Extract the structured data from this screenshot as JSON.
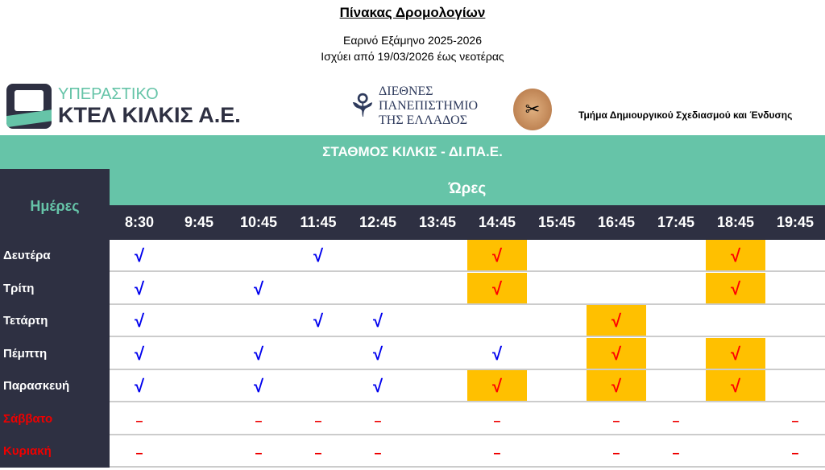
{
  "title": "Πίνακας Δρομολογίων",
  "subtitle1": "Εαρινό Εξάμηνο 2025-2026",
  "subtitle2": "Ισχύει από 19/03/2026 έως νεοτέρας",
  "logos": {
    "ktel_top": "ΥΠΕΡΑΣΤΙΚΟ",
    "ktel_bottom": "ΚΤΕΛ ΚΙΛΚΙΣ Α.Ε.",
    "ihu": [
      "ΔΙΕΘΝΕΣ",
      "ΠΑΝΕΠΙΣΤΗΜΙΟ",
      "ΤΗΣ ΕΛΛΑΔΟΣ"
    ],
    "department": "Τμήμα Δημιουργικού Σχεδιασμού και Ένδυσης"
  },
  "route": "ΣΤΑΘΜΟΣ ΚΙΛΚΙΣ - ΔΙ.ΠΑ.Ε.",
  "days_header": "Ημέρες",
  "hours_header": "Ώρες",
  "times": [
    "8:30",
    "9:45",
    "10:45",
    "11:45",
    "12:45",
    "13:45",
    "14:45",
    "15:45",
    "16:45",
    "17:45",
    "18:45",
    "19:45"
  ],
  "symbols": {
    "check": "√",
    "dash": "–"
  },
  "colors": {
    "dark": "#2e3042",
    "green": "#66c4a8",
    "highlight": "#ffc000",
    "check": "#0000ee",
    "highlight_check": "#ff0000",
    "weekend": "#ee0000"
  },
  "rows": [
    {
      "day": "Δευτέρα",
      "weekend": false,
      "cells": [
        "check",
        "",
        "",
        "check",
        "",
        "",
        "hl",
        "",
        "",
        "",
        "hl",
        ""
      ]
    },
    {
      "day": "Τρίτη",
      "weekend": false,
      "cells": [
        "check",
        "",
        "check",
        "",
        "",
        "",
        "hl",
        "",
        "",
        "",
        "hl",
        ""
      ]
    },
    {
      "day": "Τετάρτη",
      "weekend": false,
      "cells": [
        "check",
        "",
        "",
        "check",
        "check",
        "",
        "",
        "",
        "hl",
        "",
        "",
        ""
      ]
    },
    {
      "day": "Πέμπτη",
      "weekend": false,
      "cells": [
        "check",
        "",
        "check",
        "",
        "check",
        "",
        "check",
        "",
        "hl",
        "",
        "hl",
        ""
      ]
    },
    {
      "day": "Παρασκευή",
      "weekend": false,
      "cells": [
        "check",
        "",
        "check",
        "",
        "check",
        "",
        "hl",
        "",
        "hl",
        "",
        "hl",
        ""
      ]
    },
    {
      "day": "Σάββατο",
      "weekend": true,
      "cells": [
        "dash",
        "",
        "dash",
        "dash",
        "dash",
        "",
        "dash",
        "",
        "dash",
        "dash",
        "",
        "dash"
      ]
    },
    {
      "day": "Κυριακή",
      "weekend": true,
      "cells": [
        "dash",
        "",
        "dash",
        "dash",
        "dash",
        "",
        "dash",
        "",
        "dash",
        "dash",
        "",
        "dash"
      ]
    }
  ]
}
